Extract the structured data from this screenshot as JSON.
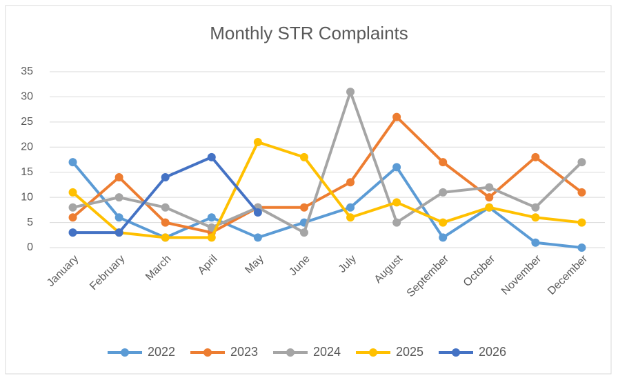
{
  "chart_data": {
    "type": "line",
    "title": "Monthly STR Complaints",
    "categories": [
      "January",
      "February",
      "March",
      "April",
      "May",
      "June",
      "July",
      "August",
      "September",
      "October",
      "November",
      "December"
    ],
    "series": [
      {
        "name": "2022",
        "color": "#5b9bd5",
        "values": [
          17,
          6,
          2,
          6,
          2,
          5,
          8,
          16,
          2,
          8,
          1,
          0
        ]
      },
      {
        "name": "2023",
        "color": "#ed7d31",
        "values": [
          6,
          14,
          5,
          3,
          8,
          8,
          13,
          26,
          17,
          10,
          18,
          11
        ]
      },
      {
        "name": "2024",
        "color": "#a5a5a5",
        "values": [
          8,
          10,
          8,
          4,
          8,
          3,
          31,
          5,
          11,
          12,
          8,
          17
        ]
      },
      {
        "name": "2025",
        "color": "#ffc000",
        "values": [
          11,
          3,
          2,
          2,
          21,
          18,
          6,
          9,
          5,
          8,
          6,
          5
        ]
      },
      {
        "name": "2026",
        "color": "#4472c4",
        "values": [
          3,
          3,
          14,
          18,
          7,
          null,
          null,
          null,
          null,
          null,
          null,
          null
        ]
      }
    ],
    "ylim": [
      0,
      35
    ],
    "yticks": [
      0,
      5,
      10,
      15,
      20,
      25,
      30,
      35
    ],
    "grid": true,
    "legend": "bottom"
  }
}
